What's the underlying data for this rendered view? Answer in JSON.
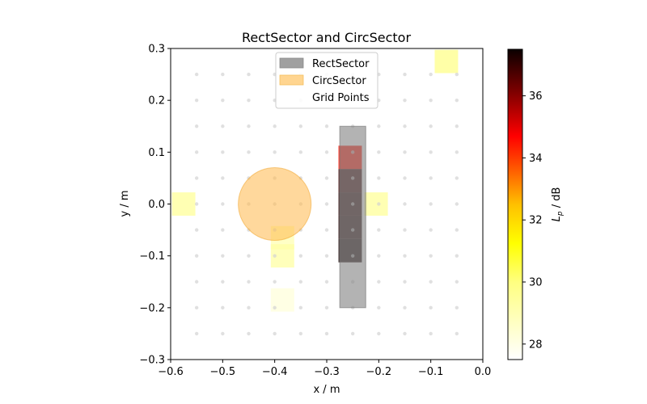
{
  "chart_data": {
    "type": "heatmap",
    "title": "RectSector and CircSector",
    "xlabel": "x / m",
    "ylabel": "y / m",
    "xlim": [
      -0.6,
      0.0
    ],
    "ylim": [
      -0.3,
      0.3
    ],
    "xticks": [
      "−0.6",
      "−0.5",
      "−0.4",
      "−0.3",
      "−0.2",
      "−0.1",
      "0.0"
    ],
    "xtick_values": [
      -0.6,
      -0.5,
      -0.4,
      -0.3,
      -0.2,
      -0.1,
      0.0
    ],
    "yticks": [
      "−0.3",
      "−0.2",
      "−0.1",
      "0.0",
      "0.1",
      "0.2",
      "0.3"
    ],
    "ytick_values": [
      -0.3,
      -0.2,
      -0.1,
      0.0,
      0.1,
      0.2,
      0.3
    ],
    "legend": {
      "placement": "top-center",
      "entries": [
        {
          "label": "RectSector",
          "color": "#a0a0a0"
        },
        {
          "label": "CircSector",
          "color": "#ffd590"
        },
        {
          "label": "Grid Points",
          "color": "#d3d3d3"
        }
      ]
    },
    "colorbar": {
      "label": "L_p / dB",
      "label_main": "L",
      "label_sub": "p",
      "label_suffix": " / dB",
      "min": 27.5,
      "max": 37.5,
      "ticks": [
        "28",
        "30",
        "32",
        "34",
        "36"
      ],
      "tick_values": [
        28,
        30,
        32,
        34,
        36
      ],
      "colormap": "hot_r"
    },
    "cell_size": 0.045,
    "cells": [
      {
        "x": -0.07,
        "y": 0.275,
        "value": 29.8
      },
      {
        "x": -0.575,
        "y": 0.0,
        "value": 29.5
      },
      {
        "x": -0.205,
        "y": 0.0,
        "value": 29.5
      },
      {
        "x": -0.385,
        "y": -0.065,
        "value": 29.0
      },
      {
        "x": -0.385,
        "y": -0.1,
        "value": 29.3
      },
      {
        "x": -0.385,
        "y": -0.185,
        "value": 28.2
      },
      {
        "x": -0.255,
        "y": 0.09,
        "value": 34.5
      },
      {
        "x": -0.255,
        "y": 0.045,
        "value": 37.0
      },
      {
        "x": -0.255,
        "y": 0.0,
        "value": 37.2
      },
      {
        "x": -0.255,
        "y": -0.045,
        "value": 37.3
      },
      {
        "x": -0.255,
        "y": -0.09,
        "value": 37.4
      }
    ],
    "rect_sector": {
      "x0": -0.275,
      "x1": -0.225,
      "y0": -0.2,
      "y1": 0.15
    },
    "circ_sector": {
      "cx": -0.4,
      "cy": 0.0,
      "r": 0.07
    },
    "grid_points": {
      "x_start": -0.55,
      "x_step": 0.05,
      "x_count": 11,
      "y_start": -0.25,
      "y_step": 0.05,
      "y_count": 11
    }
  }
}
